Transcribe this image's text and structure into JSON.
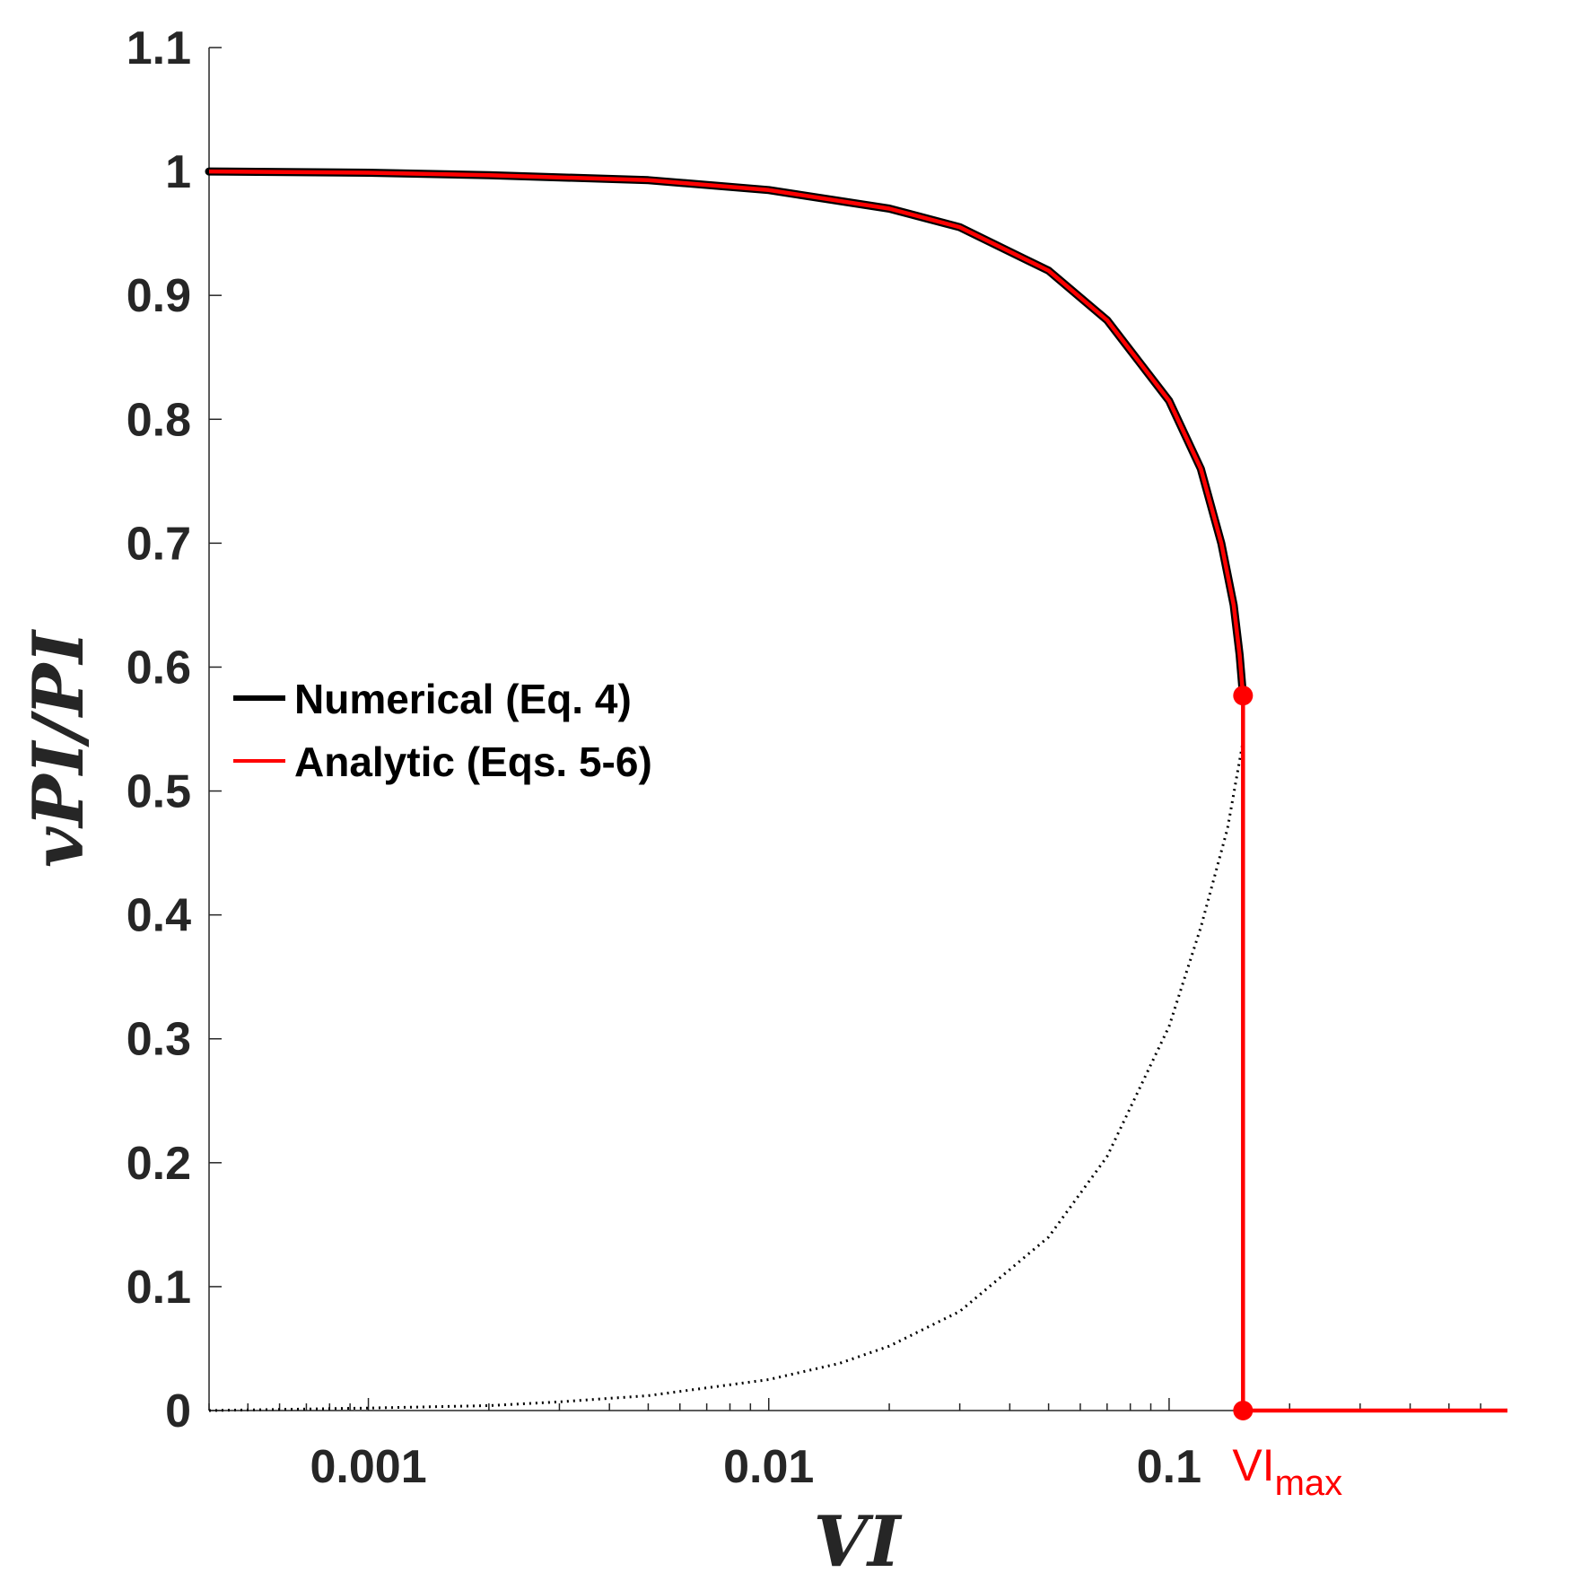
{
  "colors": {
    "numerical": "#000000",
    "analytic": "#ff0000",
    "axis": "#262626"
  },
  "chart_data": {
    "type": "line",
    "xscale": "log",
    "xlim": [
      0.0004,
      0.7
    ],
    "ylim": [
      0,
      1.1
    ],
    "xlabel": "VI",
    "ylabel": "vPI/PI",
    "grid": false,
    "legend_position": "left",
    "xticks": [
      0.001,
      0.01,
      0.1
    ],
    "xtick_labels": [
      "0.001",
      "0.01",
      "0.1"
    ],
    "yticks": [
      0,
      0.1,
      0.2,
      0.3,
      0.4,
      0.5,
      0.6,
      0.7,
      0.8,
      0.9,
      1,
      1.1
    ],
    "ytick_labels": [
      "0",
      "0.1",
      "0.2",
      "0.3",
      "0.4",
      "0.5",
      "0.6",
      "0.7",
      "0.8",
      "0.9",
      "1",
      "1.1"
    ],
    "series": [
      {
        "name": "Numerical (Eq. 4)",
        "color": "#000000",
        "style": "solid",
        "x": [
          0.0004,
          0.001,
          0.002,
          0.005,
          0.01,
          0.02,
          0.03,
          0.05,
          0.07,
          0.1,
          0.12,
          0.135,
          0.145,
          0.15,
          0.153
        ],
        "y": [
          1.0,
          0.999,
          0.997,
          0.993,
          0.985,
          0.97,
          0.955,
          0.92,
          0.88,
          0.815,
          0.76,
          0.7,
          0.65,
          0.61,
          0.577
        ]
      },
      {
        "name": "Analytic (Eqs. 5-6)",
        "color": "#ff0000",
        "style": "solid",
        "x": [
          0.0004,
          0.001,
          0.002,
          0.005,
          0.01,
          0.02,
          0.03,
          0.05,
          0.07,
          0.1,
          0.12,
          0.135,
          0.145,
          0.15,
          0.153,
          0.153,
          0.7
        ],
        "y": [
          1.0,
          0.999,
          0.997,
          0.993,
          0.985,
          0.97,
          0.955,
          0.92,
          0.88,
          0.815,
          0.76,
          0.7,
          0.65,
          0.61,
          0.577,
          0,
          0
        ]
      },
      {
        "name": "",
        "color": "#000000",
        "style": "dotted",
        "x": [
          0.0004,
          0.001,
          0.002,
          0.003,
          0.005,
          0.01,
          0.015,
          0.02,
          0.03,
          0.05,
          0.07,
          0.1,
          0.12,
          0.14,
          0.153
        ],
        "y": [
          0.0,
          0.002,
          0.004,
          0.007,
          0.012,
          0.025,
          0.038,
          0.052,
          0.08,
          0.14,
          0.205,
          0.31,
          0.39,
          0.47,
          0.54
        ]
      }
    ],
    "markers": [
      {
        "x": 0.153,
        "y": 0.577,
        "color": "#ff0000"
      },
      {
        "x": 0.153,
        "y": 0,
        "color": "#ff0000"
      }
    ],
    "annotation": {
      "text": "VI",
      "subscript": "max",
      "x": 0.153,
      "color": "#ff0000"
    }
  }
}
